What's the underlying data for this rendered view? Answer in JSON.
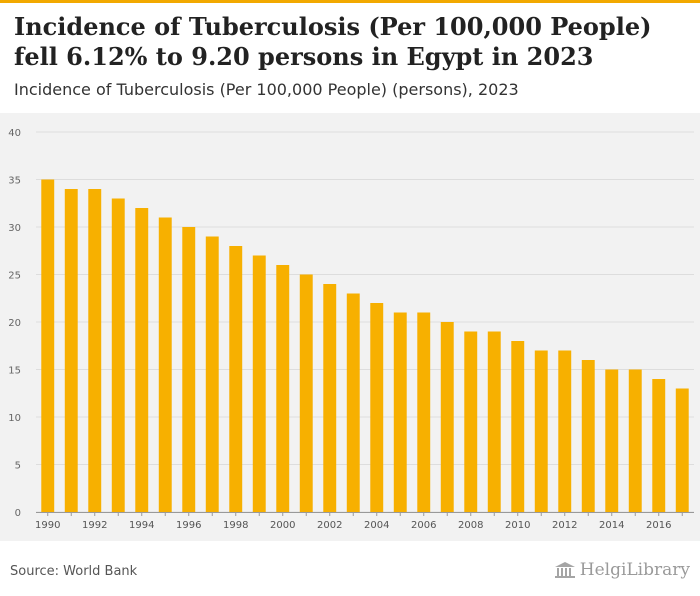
{
  "header": {
    "title": "Incidence of Tuberculosis (Per 100,000 People) fell 6.12% to 9.20 persons in Egypt in 2023",
    "subtitle": "Incidence of Tuberculosis (Per 100,000 People) (persons), 2023"
  },
  "footer": {
    "source": "Source: World Bank",
    "brand": "HelgiLibrary"
  },
  "colors": {
    "accent": "#f2a900",
    "bar": "#f7b000",
    "plot_bg": "#f2f2f2",
    "grid": "#dddddd"
  },
  "chart_data": {
    "type": "bar",
    "categories": [
      "1990",
      "1991",
      "1992",
      "1993",
      "1994",
      "1995",
      "1996",
      "1997",
      "1998",
      "1999",
      "2000",
      "2001",
      "2002",
      "2003",
      "2004",
      "2005",
      "2006",
      "2007",
      "2008",
      "2009",
      "2010",
      "2011",
      "2012",
      "2013",
      "2014",
      "2015",
      "2016",
      "2017"
    ],
    "x_tick_labels": [
      "1990",
      "1992",
      "1994",
      "1996",
      "1998",
      "2000",
      "2002",
      "2004",
      "2006",
      "2008",
      "2010",
      "2012",
      "2014",
      "2016"
    ],
    "values": [
      35,
      34,
      34,
      33,
      32,
      31,
      30,
      29,
      28,
      27,
      26,
      25,
      24,
      23,
      22,
      21,
      21,
      20,
      19,
      19,
      18,
      17,
      17,
      16,
      15,
      15,
      14,
      13
    ],
    "y_ticks": [
      0,
      5,
      10,
      15,
      20,
      25,
      30,
      35,
      40
    ],
    "ylim": [
      0,
      40
    ],
    "grid": true,
    "legend": "none"
  }
}
